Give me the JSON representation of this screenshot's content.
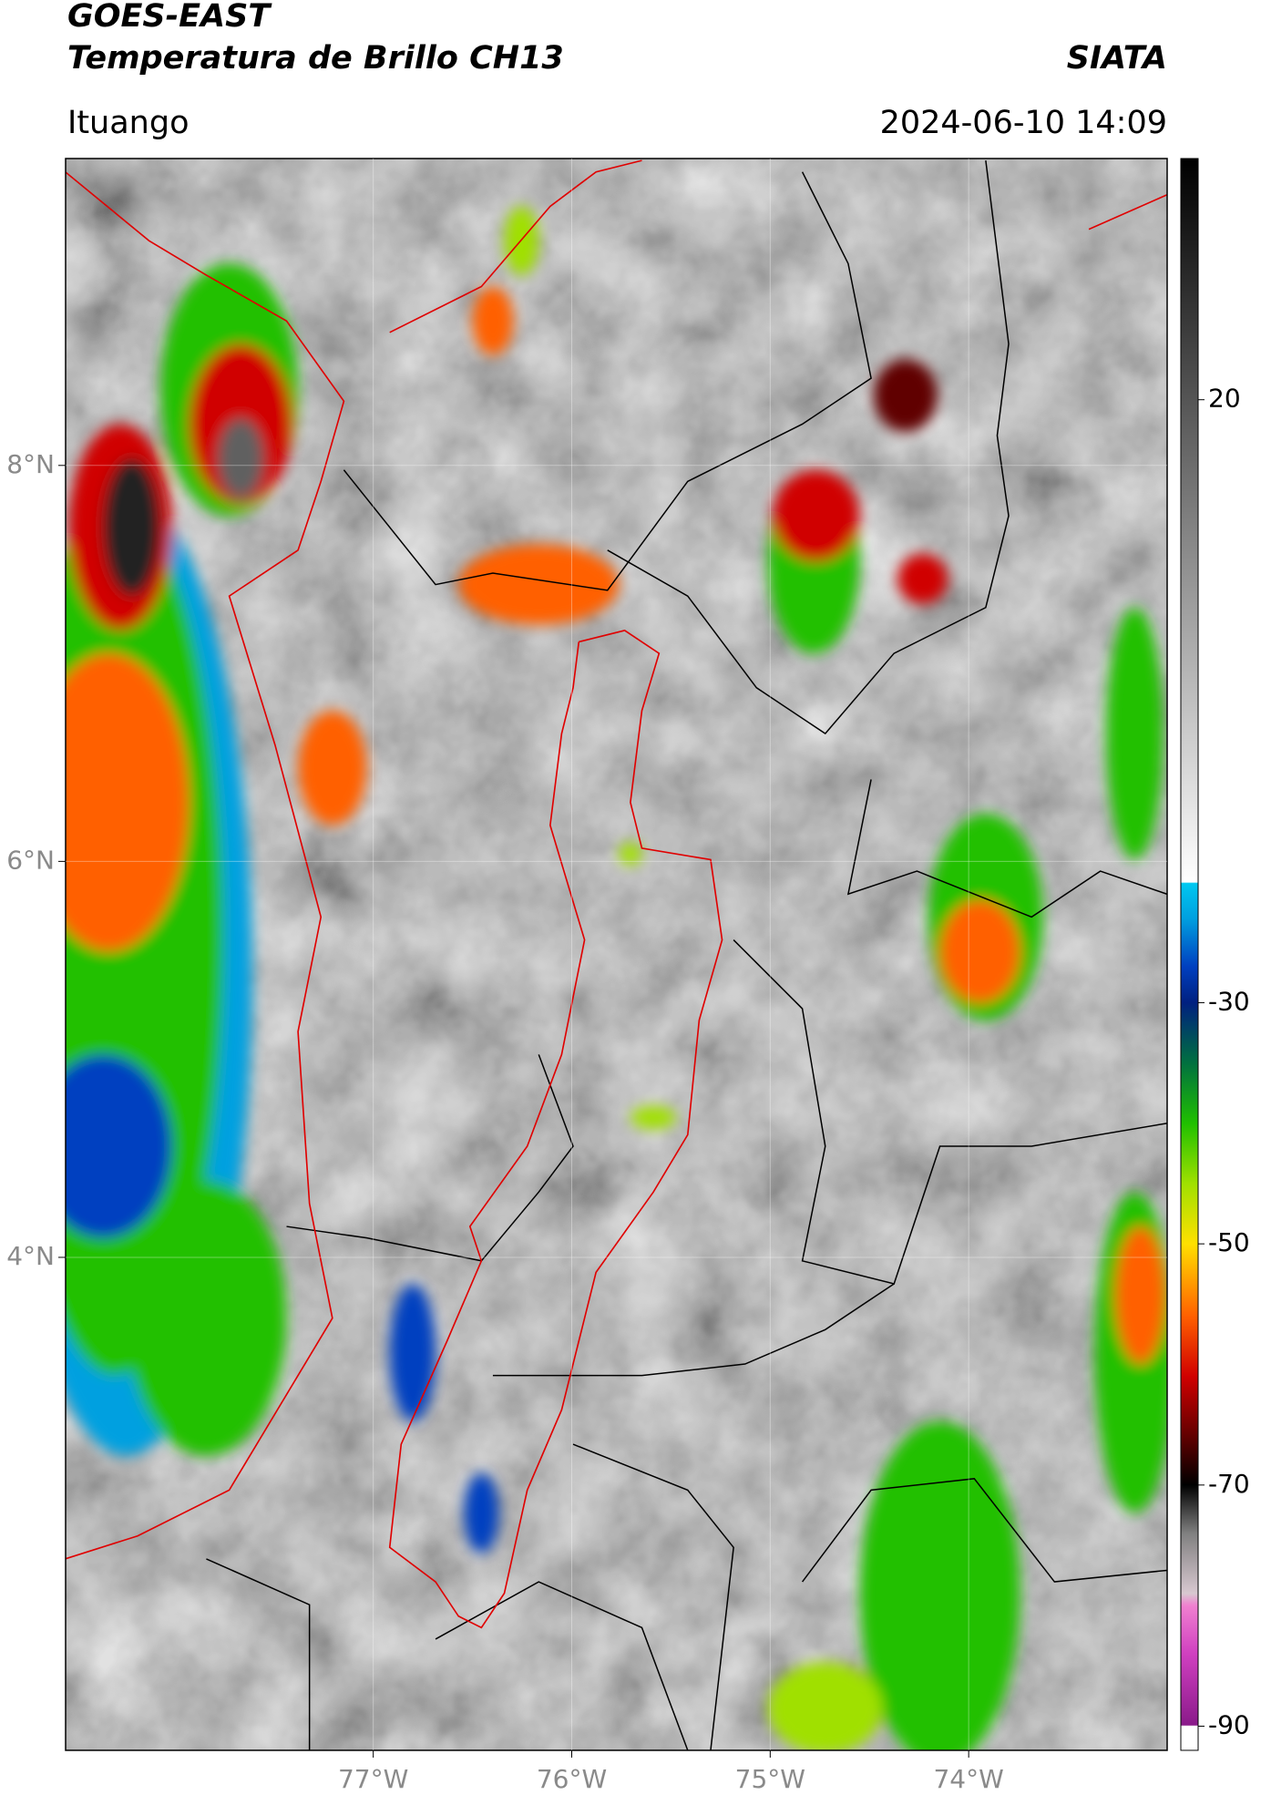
{
  "map": {
    "header": {
      "title": "GOES-EAST",
      "subtitle": "Temperatura de Brillo CH13",
      "brand": "SIATA",
      "location": "Ituango",
      "datetime": "2024-06-10 14:09"
    },
    "xlim": [
      -78.55,
      -73.0
    ],
    "ylim": [
      1.51,
      9.55
    ],
    "xticks": [
      {
        "value": -77,
        "label": "77°W"
      },
      {
        "value": -76,
        "label": "76°W"
      },
      {
        "value": -75,
        "label": "75°W"
      },
      {
        "value": -74,
        "label": "74°W"
      }
    ],
    "yticks": [
      {
        "value": 8,
        "label": "8°N"
      },
      {
        "value": 6,
        "label": "6°N"
      },
      {
        "value": 4,
        "label": "4°N"
      }
    ],
    "grid": true,
    "colorbar": {
      "lim": [
        -92,
        40
      ],
      "ticks": [
        20,
        -30,
        -50,
        -70,
        -90
      ],
      "stops": [
        {
          "value": -92,
          "color": "#ffffff"
        },
        {
          "value": -90,
          "color": "#ffffff"
        },
        {
          "value": -89.9,
          "color": "#8a1a8a"
        },
        {
          "value": -84,
          "color": "#d040c0"
        },
        {
          "value": -80,
          "color": "#f080d0"
        },
        {
          "value": -79,
          "color": "#d8c8d0"
        },
        {
          "value": -74,
          "color": "#808080"
        },
        {
          "value": -70,
          "color": "#000000"
        },
        {
          "value": -66,
          "color": "#600000"
        },
        {
          "value": -61,
          "color": "#d00000"
        },
        {
          "value": -56,
          "color": "#ff6000"
        },
        {
          "value": -50,
          "color": "#ffe000"
        },
        {
          "value": -45,
          "color": "#a0e000"
        },
        {
          "value": -40,
          "color": "#20c000"
        },
        {
          "value": -35,
          "color": "#007040"
        },
        {
          "value": -30,
          "color": "#002080"
        },
        {
          "value": -27,
          "color": "#0040c0"
        },
        {
          "value": -23,
          "color": "#00a0e0"
        },
        {
          "value": -20.1,
          "color": "#00c8f0"
        },
        {
          "value": -20,
          "color": "#ffffff"
        },
        {
          "value": 40,
          "color": "#000000"
        }
      ]
    }
  }
}
